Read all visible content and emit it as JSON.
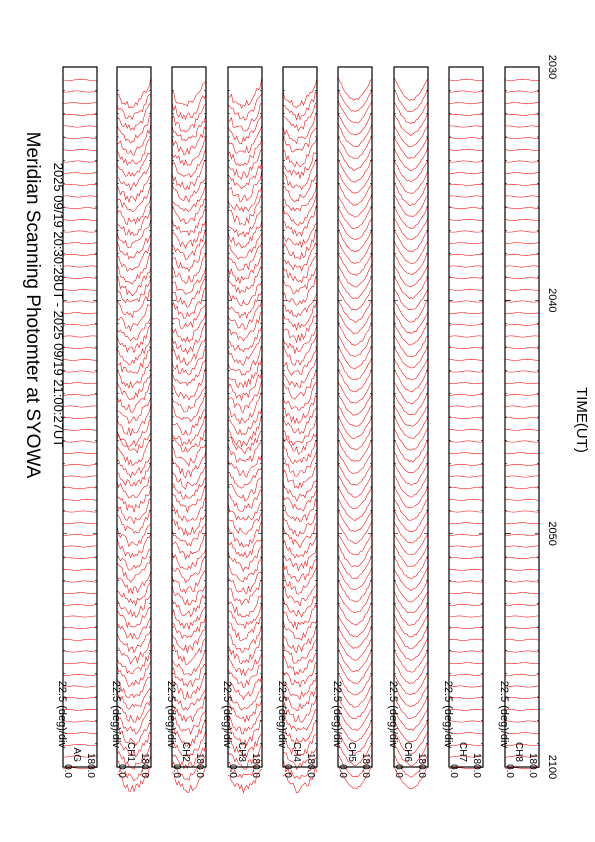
{
  "chart_data": {
    "type": "line",
    "title": "Meridian Scanning Photomter at SYOWA",
    "subtitle": "2025 09/19 20:30:28UT - 2025 09/19 21:00:27UT",
    "xlabel": "TIME(UT)",
    "x_ticks": [
      "2030",
      "2040",
      "2050",
      "2100"
    ],
    "panel_scale_label": "22.5 (deg)/div",
    "y_tick_labels": [
      "180.0",
      "0.0"
    ],
    "line_color": "#ff0000",
    "panels": [
      {
        "channel": "AG",
        "pattern": "flat"
      },
      {
        "channel": "CH1",
        "pattern": "auroral"
      },
      {
        "channel": "CH2",
        "pattern": "auroral"
      },
      {
        "channel": "CH3",
        "pattern": "auroral"
      },
      {
        "channel": "CH4",
        "pattern": "auroral"
      },
      {
        "channel": "CH5",
        "pattern": "bowl"
      },
      {
        "channel": "CH6",
        "pattern": "bowl"
      },
      {
        "channel": "CH7",
        "pattern": "flat"
      },
      {
        "channel": "CH8",
        "pattern": "flat"
      }
    ]
  }
}
